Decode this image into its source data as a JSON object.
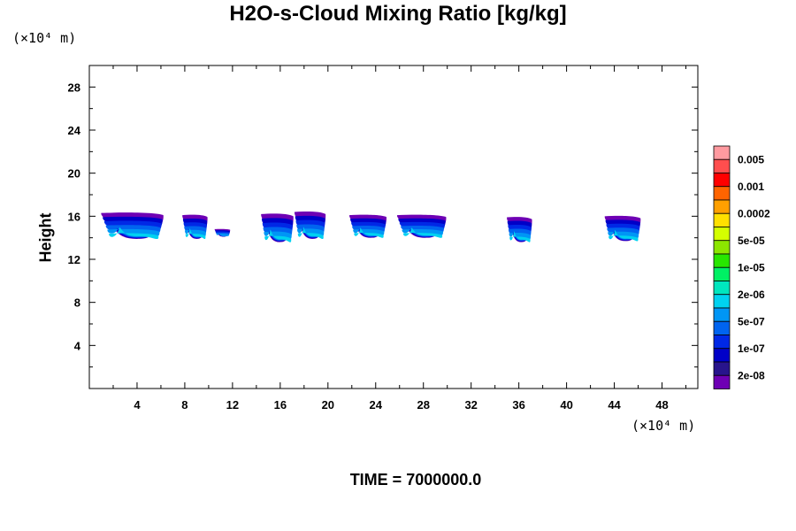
{
  "chart_data": {
    "type": "contour",
    "title": "H2O-s-Cloud Mixing Ratio [kg/kg]",
    "ylabel": "Height",
    "x_unit": "(×10⁴ m)",
    "y_unit": "(×10⁴ m)",
    "footer": "TIME = 7000000.0",
    "xlim": [
      0,
      51
    ],
    "ylim": [
      0,
      30
    ],
    "x_ticks": [
      4,
      8,
      12,
      16,
      20,
      24,
      28,
      32,
      36,
      40,
      44,
      48
    ],
    "y_ticks": [
      4,
      8,
      12,
      16,
      20,
      24,
      28
    ],
    "colorbar": {
      "colors": [
        "#ff9aa0",
        "#ff4e4e",
        "#ff0000",
        "#ff6400",
        "#ffa000",
        "#ffe000",
        "#d4ff00",
        "#8ce600",
        "#28e600",
        "#00f064",
        "#00e6be",
        "#00d2f0",
        "#0096f5",
        "#0064f0",
        "#0028e6",
        "#0000c8",
        "#28148c",
        "#6e00b4"
      ],
      "labels": [
        "0.005",
        "0.001",
        "0.0002",
        "5e-05",
        "1e-05",
        "2e-06",
        "5e-07",
        "1e-07",
        "2e-08"
      ]
    },
    "cloud_blobs": [
      {
        "x_min": 1.0,
        "x_max": 6.2,
        "y_bottom": 13.9,
        "y_top": 16.3,
        "core": 1
      },
      {
        "x_min": 7.8,
        "x_max": 9.9,
        "y_bottom": 13.9,
        "y_top": 16.1,
        "core": 1
      },
      {
        "x_min": 10.5,
        "x_max": 11.8,
        "y_bottom": 14.1,
        "y_top": 14.8,
        "core": 0
      },
      {
        "x_min": 14.4,
        "x_max": 17.1,
        "y_bottom": 13.6,
        "y_top": 16.2,
        "core": 2
      },
      {
        "x_min": 17.2,
        "x_max": 19.8,
        "y_bottom": 13.9,
        "y_top": 16.4,
        "core": 2
      },
      {
        "x_min": 21.8,
        "x_max": 24.9,
        "y_bottom": 14.0,
        "y_top": 16.1,
        "core": 1
      },
      {
        "x_min": 25.8,
        "x_max": 29.9,
        "y_bottom": 14.0,
        "y_top": 16.1,
        "core": 1
      },
      {
        "x_min": 35.0,
        "x_max": 37.1,
        "y_bottom": 13.6,
        "y_top": 15.9,
        "core": 2
      },
      {
        "x_min": 43.2,
        "x_max": 46.2,
        "y_bottom": 13.7,
        "y_top": 16.0,
        "core": 2
      }
    ]
  }
}
